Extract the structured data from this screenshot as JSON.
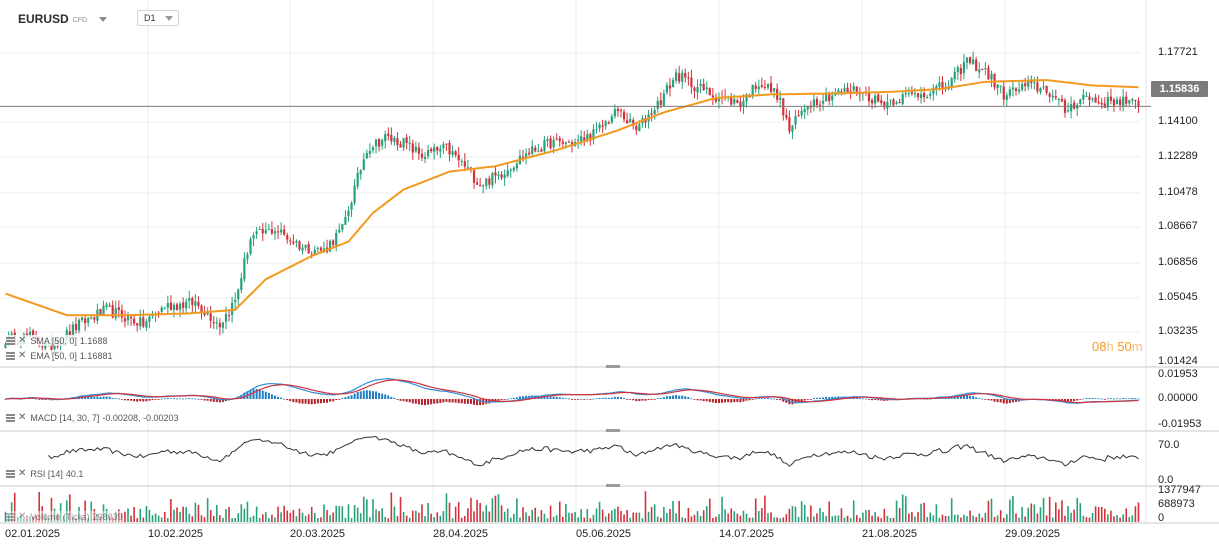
{
  "header": {
    "symbol": "EURUSD",
    "instrument_type": "CFD",
    "timeframe": "D1"
  },
  "price": {
    "last": "1.15836"
  },
  "timer": {
    "hours": "08",
    "h_unit": "h",
    "minutes": "50",
    "m_unit": "m"
  },
  "price_axis": [
    "1.17721",
    "1.15836",
    "1.14100",
    "1.12289",
    "1.10478",
    "1.08667",
    "1.06856",
    "1.05045",
    "1.03235",
    "1.01424"
  ],
  "macd_axis": [
    "0.01953",
    "0.00000",
    "-0.01953"
  ],
  "rsi_axis": [
    "70.0",
    "0.0"
  ],
  "volume_axis": [
    "1377947",
    "688973",
    "0"
  ],
  "x_labels": [
    "02.01.2025",
    "10.02.2025",
    "20.03.2025",
    "28.04.2025",
    "05.06.2025",
    "14.07.2025",
    "21.08.2025",
    "29.09.2025"
  ],
  "indicators": {
    "sma": {
      "label": "SMA [50, 0]",
      "value": "1.1688"
    },
    "ema": {
      "label": "EMA [50, 0]",
      "value": "1.16881"
    },
    "macd": {
      "label": "MACD [14, 30, 7]",
      "value": "-0.00208, -0.00203"
    },
    "rsi": {
      "label": "RSI [14]",
      "value": "40.1"
    },
    "volume": {
      "label": "Volume (Ticks)",
      "value": "298039"
    }
  },
  "colors": {
    "up": "#26a17b",
    "down": "#d2313a",
    "ma": "#f29a1e",
    "macd_line": "#2f8fd8",
    "signal_line": "#d2313a",
    "hist_up": "#1f7fc4",
    "hist_down": "#b3202a",
    "rsi": "#333333",
    "grid": "#ececec",
    "price_line": "#7b7b7b"
  },
  "chart_data": {
    "type": "candlestick",
    "title": "EURUSD D1",
    "x_range": [
      "2025-01-02",
      "2025-10-22"
    ],
    "y_range": [
      1.01424,
      1.19532
    ],
    "last_price": 1.15836,
    "close_anchors": [
      [
        0,
        1.0285
      ],
      [
        8,
        1.03
      ],
      [
        14,
        1.0235
      ],
      [
        25,
        1.038
      ],
      [
        33,
        1.045
      ],
      [
        45,
        1.037
      ],
      [
        52,
        1.047
      ],
      [
        62,
        1.049
      ],
      [
        70,
        1.037
      ],
      [
        75,
        1.05
      ],
      [
        80,
        1.085
      ],
      [
        88,
        1.09
      ],
      [
        97,
        1.08
      ],
      [
        104,
        1.078
      ],
      [
        110,
        1.09
      ],
      [
        118,
        1.135
      ],
      [
        124,
        1.141
      ],
      [
        130,
        1.138
      ],
      [
        136,
        1.131
      ],
      [
        144,
        1.135
      ],
      [
        150,
        1.125
      ],
      [
        155,
        1.115
      ],
      [
        161,
        1.12
      ],
      [
        170,
        1.132
      ],
      [
        178,
        1.138
      ],
      [
        186,
        1.138
      ],
      [
        193,
        1.144
      ],
      [
        200,
        1.156
      ],
      [
        206,
        1.145
      ],
      [
        214,
        1.162
      ],
      [
        219,
        1.176
      ],
      [
        225,
        1.17
      ],
      [
        232,
        1.164
      ],
      [
        240,
        1.16
      ],
      [
        246,
        1.172
      ],
      [
        252,
        1.165
      ],
      [
        256,
        1.145
      ],
      [
        262,
        1.16
      ],
      [
        270,
        1.165
      ],
      [
        278,
        1.168
      ],
      [
        286,
        1.16
      ],
      [
        294,
        1.164
      ],
      [
        300,
        1.166
      ],
      [
        308,
        1.17
      ],
      [
        314,
        1.184
      ],
      [
        320,
        1.178
      ],
      [
        326,
        1.165
      ],
      [
        334,
        1.17
      ],
      [
        340,
        1.168
      ],
      [
        346,
        1.156
      ],
      [
        352,
        1.164
      ],
      [
        358,
        1.16
      ],
      [
        364,
        1.162
      ],
      [
        370,
        1.1584
      ]
    ],
    "ma_anchors": [
      [
        0,
        1.054
      ],
      [
        20,
        1.042
      ],
      [
        40,
        1.042
      ],
      [
        60,
        1.043
      ],
      [
        75,
        1.045
      ],
      [
        85,
        1.062
      ],
      [
        100,
        1.075
      ],
      [
        112,
        1.083
      ],
      [
        120,
        1.099
      ],
      [
        130,
        1.112
      ],
      [
        145,
        1.122
      ],
      [
        160,
        1.125
      ],
      [
        180,
        1.134
      ],
      [
        200,
        1.145
      ],
      [
        215,
        1.155
      ],
      [
        232,
        1.163
      ],
      [
        250,
        1.165
      ],
      [
        270,
        1.1655
      ],
      [
        290,
        1.1665
      ],
      [
        305,
        1.168
      ],
      [
        320,
        1.172
      ],
      [
        340,
        1.173
      ],
      [
        355,
        1.17
      ],
      [
        370,
        1.169
      ]
    ],
    "rsi_range": [
      0,
      100
    ],
    "volume_range": [
      0,
      1377947
    ]
  }
}
